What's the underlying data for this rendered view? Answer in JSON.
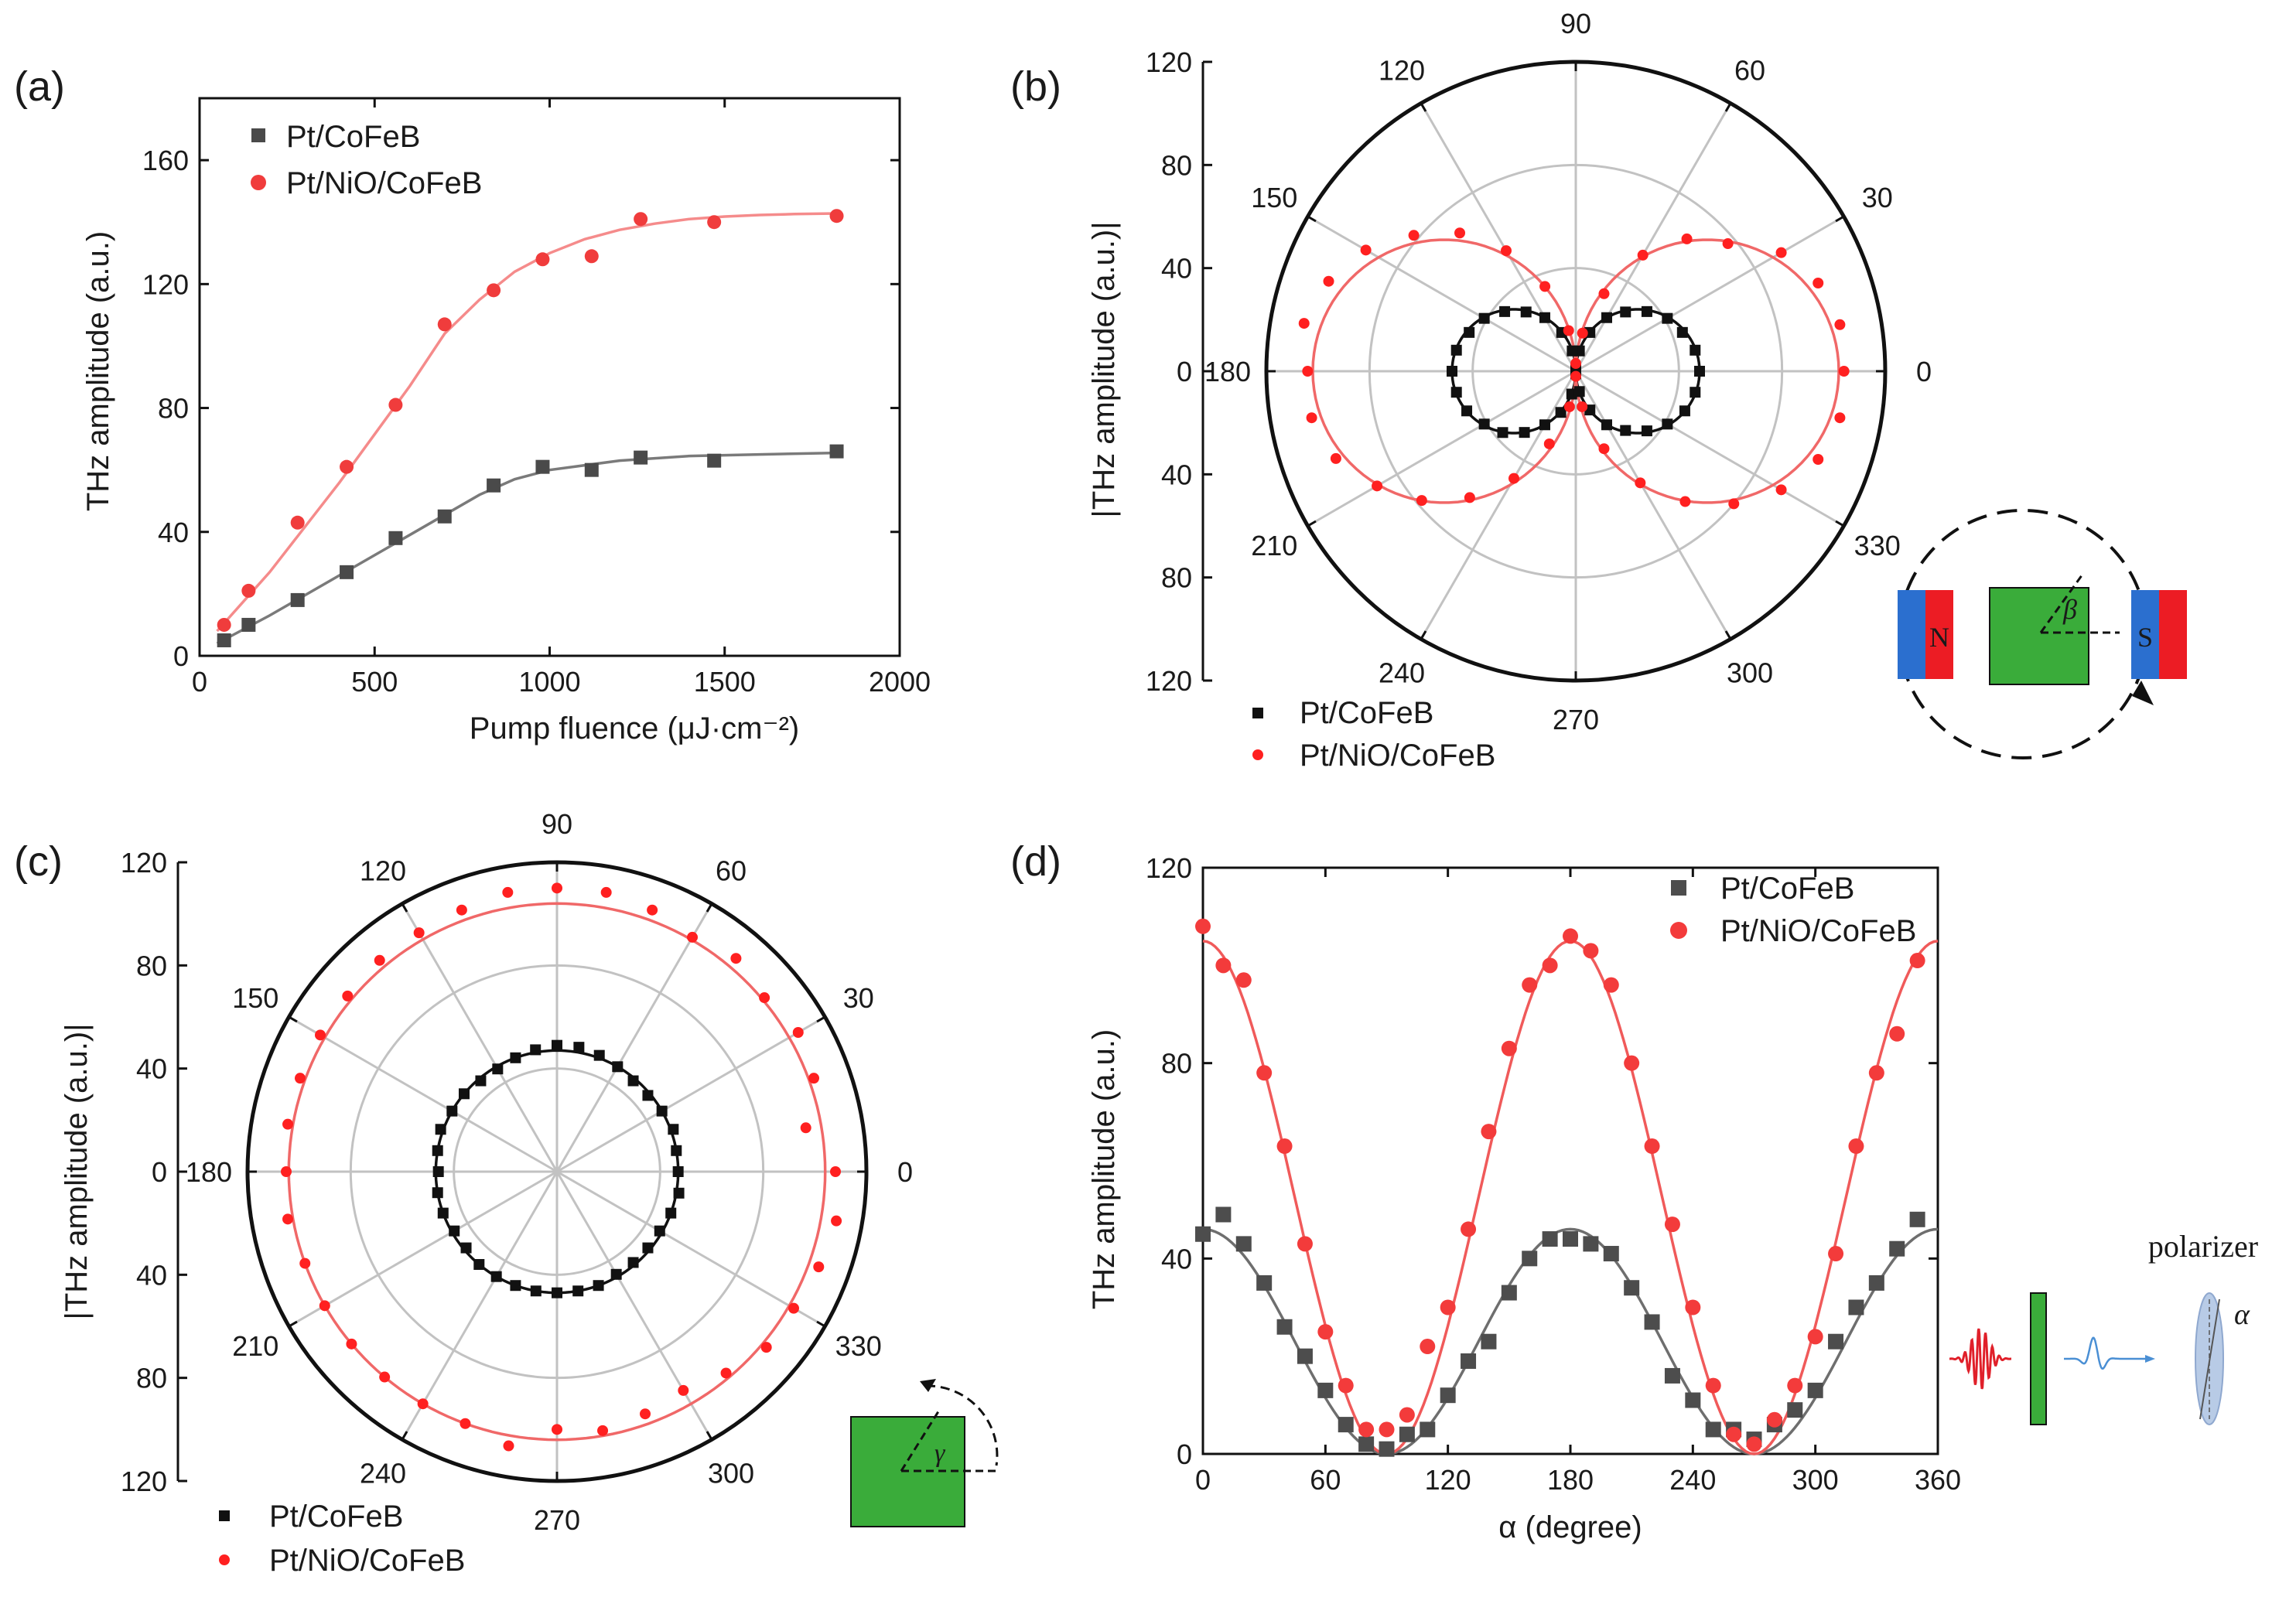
{
  "chart_data": [
    {
      "id": "a",
      "type": "scatter",
      "panel_label": "(a)",
      "xlabel": "Pump fluence (μJ·cm⁻²)",
      "ylabel": "THz amplitude (a.u.)",
      "xlim": [
        0,
        2000
      ],
      "ylim": [
        0,
        180
      ],
      "xticks": [
        0,
        500,
        1000,
        1500,
        2000
      ],
      "yticks": [
        0,
        40,
        80,
        120,
        160
      ],
      "legend_position": "top-left",
      "series": [
        {
          "name": "Pt/CoFeB",
          "color": "#4a4a4a",
          "fit_color": "#7a7a7a",
          "marker": "square",
          "x": [
            70,
            140,
            280,
            420,
            560,
            700,
            840,
            980,
            1120,
            1260,
            1470,
            1820
          ],
          "y": [
            5,
            10,
            18,
            27,
            38,
            45,
            55,
            61,
            60,
            64,
            63,
            66
          ],
          "fit_x": [
            50,
            200,
            400,
            600,
            800,
            900,
            1000,
            1200,
            1400,
            1600,
            1820
          ],
          "fit_y": [
            4,
            13,
            26,
            39,
            52,
            57,
            60,
            63,
            64.5,
            65,
            65.5
          ]
        },
        {
          "name": "Pt/NiO/CoFeB",
          "color": "#f03c3c",
          "fit_color": "#f58b8b",
          "marker": "circle",
          "x": [
            70,
            140,
            280,
            420,
            560,
            700,
            840,
            980,
            1120,
            1260,
            1470,
            1820
          ],
          "y": [
            10,
            21,
            43,
            61,
            81,
            107,
            118,
            128,
            129,
            141,
            140,
            142
          ],
          "fit_x": [
            50,
            200,
            400,
            600,
            700,
            800,
            900,
            1000,
            1100,
            1200,
            1300,
            1400,
            1500,
            1600,
            1700,
            1820
          ],
          "fit_y": [
            8,
            27,
            56,
            87,
            104,
            115,
            124,
            130,
            134.5,
            137.5,
            139.5,
            141,
            141.8,
            142.3,
            142.6,
            142.8
          ]
        }
      ]
    },
    {
      "id": "b",
      "type": "polar",
      "panel_label": "(b)",
      "ylabel": "|THz amplitude (a.u.)|",
      "r_max": 120,
      "r_ticks": [
        0,
        40,
        80,
        120
      ],
      "angle_ticks": [
        0,
        30,
        60,
        90,
        120,
        150,
        180,
        210,
        240,
        270,
        300,
        330
      ],
      "legend_position": "bottom-left",
      "series": [
        {
          "name": "Pt/CoFeB",
          "color": "#111111",
          "marker": "square",
          "model": "|r0 cos(theta)|",
          "fit_r0": 48,
          "angles": [
            0,
            10,
            20,
            30,
            40,
            50,
            60,
            70,
            80,
            90,
            100,
            110,
            120,
            130,
            140,
            150,
            160,
            170,
            180,
            190,
            200,
            210,
            220,
            230,
            240,
            250,
            260,
            270,
            280,
            290,
            300,
            310,
            320,
            330,
            340,
            350
          ],
          "r": [
            48,
            47,
            44,
            41,
            36,
            30,
            24,
            16,
            8,
            1,
            8,
            16,
            24,
            30,
            36,
            41,
            44,
            47,
            48,
            47,
            45,
            41,
            37,
            31,
            24,
            17,
            9,
            1,
            8,
            16,
            24,
            30,
            36,
            41,
            45,
            47
          ]
        },
        {
          "name": "Pt/NiO/CoFeB",
          "color": "#ff2020",
          "fit_color": "#f06868",
          "marker": "circle",
          "model": "|r0 cos(theta)|",
          "fit_r0": 102,
          "angles": [
            0,
            10,
            20,
            30,
            40,
            50,
            60,
            70,
            80,
            90,
            100,
            110,
            120,
            130,
            140,
            150,
            160,
            170,
            180,
            190,
            200,
            210,
            220,
            230,
            240,
            250,
            260,
            270,
            280,
            290,
            300,
            310,
            320,
            330,
            340,
            350
          ],
          "r": [
            104,
            104,
            100,
            92,
            77,
            67,
            52,
            32,
            15,
            3,
            16,
            35,
            54,
            70,
            82,
            94,
            102,
            107,
            104,
            104,
            99,
            89,
            78,
            64,
            48,
            30,
            14,
            2,
            14,
            32,
            50,
            66,
            80,
            92,
            100,
            104
          ]
        }
      ]
    },
    {
      "id": "c",
      "type": "polar",
      "panel_label": "(c)",
      "ylabel": "|THz amplitude (a.u.)|",
      "r_max": 120,
      "r_ticks": [
        0,
        40,
        80,
        120
      ],
      "angle_ticks": [
        0,
        30,
        60,
        90,
        120,
        150,
        180,
        210,
        240,
        270,
        300,
        330
      ],
      "legend_position": "bottom-left",
      "series": [
        {
          "name": "Pt/CoFeB",
          "color": "#111111",
          "marker": "square",
          "model": "r0 (constant)",
          "fit_r0": 47,
          "angles": [
            0,
            10,
            20,
            30,
            40,
            50,
            60,
            70,
            80,
            90,
            100,
            110,
            120,
            130,
            140,
            150,
            160,
            170,
            180,
            190,
            200,
            210,
            220,
            230,
            240,
            250,
            260,
            270,
            280,
            290,
            300,
            310,
            320,
            330,
            340,
            350
          ],
          "r": [
            47,
            47,
            48,
            47,
            46,
            46,
            47,
            48,
            49,
            49,
            48,
            47,
            46,
            46,
            47,
            47,
            48,
            47,
            46,
            47,
            47,
            46,
            46,
            47,
            47,
            47,
            47,
            47,
            47,
            47,
            46,
            46,
            46,
            46,
            47,
            48
          ]
        },
        {
          "name": "Pt/NiO/CoFeB",
          "color": "#ff2020",
          "fit_color": "#f06868",
          "marker": "circle",
          "model": "r0 (constant)",
          "fit_r0": 104,
          "angles": [
            0,
            10,
            20,
            30,
            40,
            50,
            60,
            70,
            80,
            90,
            100,
            110,
            120,
            130,
            140,
            150,
            160,
            170,
            180,
            190,
            200,
            210,
            220,
            230,
            240,
            250,
            260,
            270,
            280,
            290,
            300,
            310,
            320,
            330,
            340,
            350
          ],
          "r": [
            108,
            98,
            106,
            108,
            105,
            108,
            105,
            108,
            110,
            110,
            110,
            108,
            107,
            107,
            106,
            106,
            106,
            106,
            105,
            106,
            104,
            104,
            104,
            104,
            104,
            104,
            108,
            100,
            102,
            100,
            98,
            102,
            106,
            106,
            108,
            110
          ]
        }
      ]
    },
    {
      "id": "d",
      "type": "scatter",
      "panel_label": "(d)",
      "xlabel": "α (degree)",
      "ylabel": "THz amplitude (a.u.)",
      "xlim": [
        0,
        360
      ],
      "ylim": [
        0,
        120
      ],
      "xticks": [
        0,
        60,
        120,
        180,
        240,
        300,
        360
      ],
      "yticks": [
        0,
        40,
        80,
        120
      ],
      "legend_position": "top-right",
      "series": [
        {
          "name": "Pt/CoFeB",
          "color": "#4d4d4d",
          "fit_color": "#6e6e6e",
          "marker": "square",
          "model": "A cos²(alpha)",
          "fit_A": 46,
          "x": [
            0,
            10,
            20,
            30,
            40,
            50,
            60,
            70,
            80,
            90,
            100,
            110,
            120,
            130,
            140,
            150,
            160,
            170,
            180,
            190,
            200,
            210,
            220,
            230,
            240,
            250,
            260,
            270,
            280,
            290,
            300,
            310,
            320,
            330,
            340,
            350
          ],
          "y": [
            45,
            49,
            43,
            35,
            26,
            20,
            13,
            6,
            2,
            1,
            4,
            5,
            12,
            19,
            23,
            33,
            40,
            44,
            44,
            43,
            41,
            34,
            27,
            16,
            11,
            5,
            5,
            3,
            6,
            9,
            13,
            23,
            30,
            35,
            42,
            48
          ]
        },
        {
          "name": "Pt/NiO/CoFeB",
          "color": "#f33b3b",
          "fit_color": "#f05a5a",
          "marker": "circle",
          "model": "A cos²(alpha)",
          "fit_A": 105,
          "x": [
            0,
            10,
            20,
            30,
            40,
            50,
            60,
            70,
            80,
            90,
            100,
            110,
            120,
            130,
            140,
            150,
            160,
            170,
            180,
            190,
            200,
            210,
            220,
            230,
            240,
            250,
            260,
            270,
            280,
            290,
            300,
            310,
            320,
            330,
            340,
            350
          ],
          "y": [
            108,
            100,
            97,
            78,
            63,
            43,
            25,
            14,
            5,
            5,
            8,
            22,
            30,
            46,
            66,
            83,
            96,
            100,
            106,
            103,
            96,
            80,
            63,
            47,
            30,
            14,
            4,
            2,
            7,
            14,
            24,
            41,
            63,
            78,
            86,
            101
          ]
        }
      ]
    }
  ],
  "insets": {
    "b": {
      "magnet_left_label": "N",
      "magnet_right_label": "S",
      "angle_label": "β"
    },
    "c": {
      "angle_label": "γ"
    },
    "d": {
      "polarizer_label": "polarizer",
      "angle_label": "α"
    }
  },
  "colors": {
    "sample_green": "#3aac3a",
    "magnet_blue": "#2b6fcf",
    "magnet_red": "#ec1c24"
  }
}
